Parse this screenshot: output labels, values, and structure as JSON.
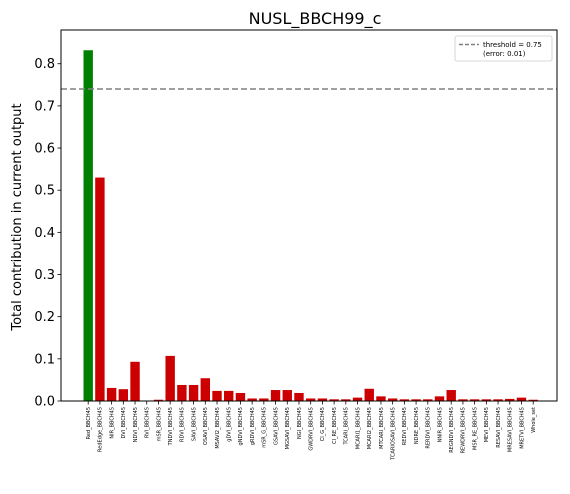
{
  "chart_data": {
    "type": "bar",
    "title": "NUSL_BBCH99_c",
    "xlabel": "",
    "ylabel": "Total contribution in current output",
    "ylim": [
      0,
      0.88
    ],
    "yticks": [
      0.0,
      0.1,
      0.2,
      0.3,
      0.4,
      0.5,
      0.6,
      0.7,
      0.8
    ],
    "ytick_labels": [
      "0.0",
      "0.1",
      "0.2",
      "0.3",
      "0.4",
      "0.5",
      "0.6",
      "0.7",
      "0.8"
    ],
    "grid": false,
    "legend_placement": "top-right",
    "threshold": {
      "value": 0.74,
      "label": "threshold = 0.75",
      "sublabel": "(error: 0.01)",
      "color": "#808080"
    },
    "colors": {
      "selected": "#008000",
      "other": "#cc0000"
    },
    "categories": [
      "Red_BBCH45",
      "RedEdge_BBCH45",
      "NIR_BBCH45",
      "DVI_BBCH45",
      "NDVI_BBCH45",
      "RVI_BBCH45",
      "mSR_BBCH45",
      "TNDVI_BBCH45",
      "RDVI_BBCH45",
      "SAVI_BBCH45",
      "OSAVI_BBCH45",
      "MSAVI2_BBCH45",
      "gDVI_BBCH45",
      "gNDVI_BBCH45",
      "gRDVI_BBCH45",
      "mSR_G_BBCH45",
      "GSAVI_BBCH45",
      "MGSAVI_BBCH45",
      "NGI_BBCH45",
      "GWDRVI_BBCH45",
      "CI_G_BBCH45",
      "CI_RE_BBCH45",
      "TCARI_BBCH45",
      "MCARI1_BBCH45",
      "MCARI2_BBCH45",
      "MTCARI_BBCH45",
      "TCARIOSAVI_BBCH45",
      "REDVI_BBCH45",
      "NDRE_BBCH45",
      "RERDVI_BBCH45",
      "NNIR_BBCH45",
      "REGNDVI_BBCH45",
      "REWDRVI_BBCH45",
      "MSR_RE_BBCH45",
      "MEVI_BBCH45",
      "RESAVI_BBCH45",
      "MRESAVI_BBCH45",
      "MRETVI_BBCH45",
      "Whole_set"
    ],
    "values": [
      0.832,
      0.53,
      0.031,
      0.028,
      0.093,
      0.001,
      0.003,
      0.107,
      0.038,
      0.038,
      0.054,
      0.024,
      0.024,
      0.019,
      0.006,
      0.006,
      0.026,
      0.026,
      0.019,
      0.006,
      0.006,
      0.004,
      0.004,
      0.008,
      0.029,
      0.011,
      0.006,
      0.004,
      0.004,
      0.004,
      0.011,
      0.026,
      0.004,
      0.004,
      0.004,
      0.004,
      0.005,
      0.008,
      0.003
    ],
    "highlight_index": 0
  }
}
